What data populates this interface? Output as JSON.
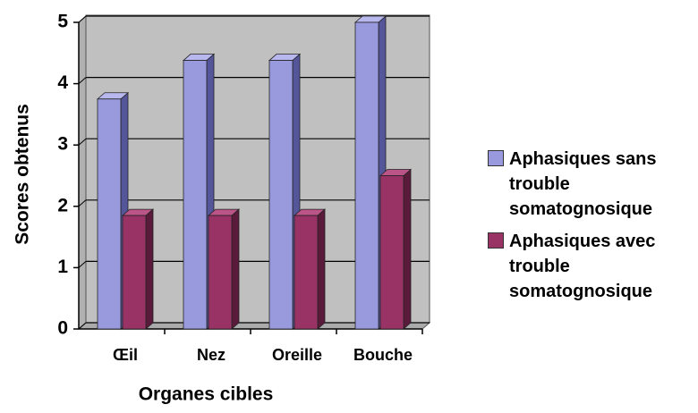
{
  "chart_data": {
    "type": "bar3d",
    "categories": [
      "Œil",
      "Nez",
      "Oreille",
      "Bouche"
    ],
    "series": [
      {
        "name": "Aphasiques sans trouble somatognosique",
        "color": "#9999dd",
        "values": [
          3.75,
          4.38,
          4.38,
          5.0
        ]
      },
      {
        "name": "Aphasiques avec trouble somatognosique",
        "color": "#993366",
        "values": [
          1.85,
          1.85,
          1.85,
          2.5
        ]
      }
    ],
    "ylim": [
      0,
      5
    ],
    "yticks": [
      0,
      1,
      2,
      3,
      4,
      5
    ],
    "grid": true,
    "xlabel": "Organes cibles",
    "ylabel": "Scores obtenus",
    "legend": "right"
  }
}
